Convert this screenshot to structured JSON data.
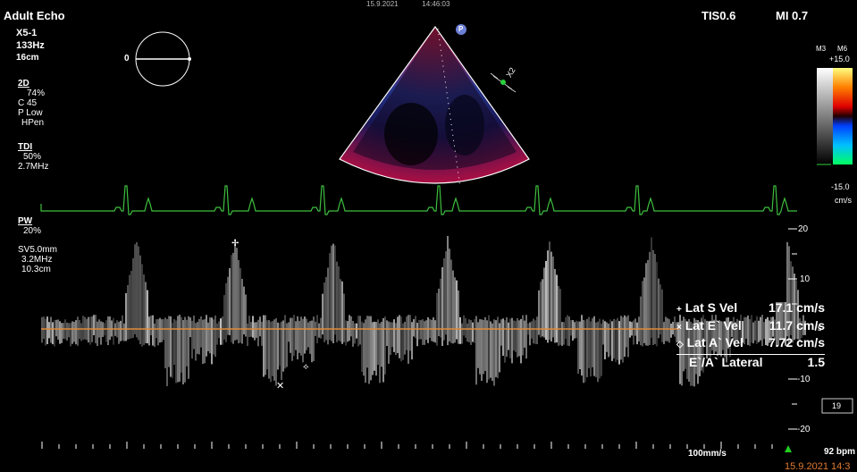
{
  "header": {
    "preset": "Adult Echo",
    "tis": "TIS0.6",
    "mi": "MI 0.7",
    "top_center_date": "15.9.2021",
    "top_center_time": "14:46:03"
  },
  "probe": {
    "name": "X5-1",
    "frame_rate": "133Hz",
    "depth": "16cm"
  },
  "biplane": {
    "angle_label": "0"
  },
  "params_2d": {
    "title": "2D",
    "lines": [
      "74%",
      "C 45",
      "P Low",
      "HPen"
    ]
  },
  "params_tdi": {
    "title": "TDI",
    "lines": [
      "50%",
      "2.7MHz"
    ]
  },
  "params_pw": {
    "title": "PW",
    "lines": [
      "20%"
    ]
  },
  "params_sv": {
    "lines": [
      "SV5.0mm",
      "3.2MHz",
      "10.3cm"
    ]
  },
  "color_map": {
    "label_left": "M3",
    "label_right": "M6",
    "top_value": "+15.0",
    "bottom_value": "-15.0",
    "unit": "cm/s"
  },
  "sector": {
    "x2_label": "X2",
    "p_badge": "P"
  },
  "doppler_scale": {
    "ticks": [
      "20",
      "10",
      "-10",
      "-20"
    ],
    "unit": "/s",
    "box_value": "19"
  },
  "measurements": [
    {
      "marker": "+",
      "label": "Lat S Vel",
      "value": "17.1 cm/s"
    },
    {
      "marker": "×",
      "label": "Lat E` Vel",
      "value": "11.7 cm/s"
    },
    {
      "marker": "◇",
      "label": "Lat A` Vel",
      "value": "7.72 cm/s"
    },
    {
      "marker": "",
      "label": "E`/A` Lateral",
      "value": "1.5"
    }
  ],
  "footer": {
    "sweep_speed": "100mm/s",
    "heart_rate": "92 bpm",
    "date_time": "15.9.2021  14:3"
  },
  "colors": {
    "ecg": "#3fbf3f",
    "baseline": "#e08a3c",
    "date": "#e07a30",
    "heart_marker": "#22cc22"
  }
}
